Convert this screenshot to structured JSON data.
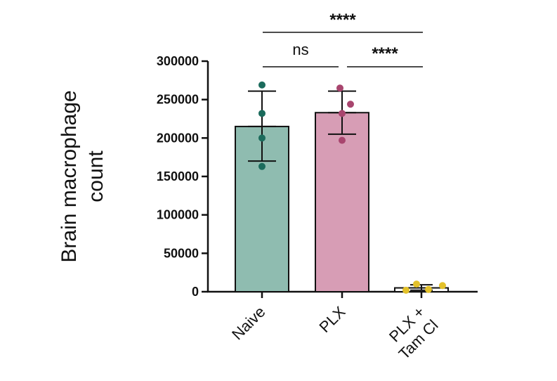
{
  "chart_data": {
    "type": "bar",
    "title": "",
    "xlabel": "",
    "ylabel_lines": [
      "Brain macrophage",
      "count"
    ],
    "ylim": [
      0,
      300000
    ],
    "yticks": [
      0,
      50000,
      100000,
      150000,
      200000,
      250000,
      300000
    ],
    "ytick_labels": [
      "0",
      "50000",
      "100000",
      "150000",
      "200000",
      "250000",
      "300000"
    ],
    "categories": [
      {
        "label_lines": [
          "Naive"
        ]
      },
      {
        "label_lines": [
          "PLX"
        ]
      },
      {
        "label_lines": [
          "PLX +",
          "Tam Cl"
        ]
      }
    ],
    "values": [
      215000,
      233000,
      5000
    ],
    "error_low": [
      170000,
      205000,
      2000
    ],
    "error_high": [
      261000,
      261000,
      9000
    ],
    "points": [
      [
        269000,
        232000,
        200000,
        163000
      ],
      [
        265000,
        244000,
        232000,
        197000
      ],
      [
        2000,
        10000,
        3000,
        8000
      ]
    ],
    "bar_colors": [
      "#8fbcb0",
      "#d79db5",
      "#ffffff"
    ],
    "point_colors": [
      "#1b6b5c",
      "#a8456e",
      "#e3c12a"
    ],
    "comparisons": [
      {
        "from": 0,
        "to": 2,
        "label": "****"
      },
      {
        "from": 0,
        "to": 1,
        "label": "ns"
      },
      {
        "from": 1,
        "to": 2,
        "label": "****"
      }
    ],
    "grid": false,
    "legend": "none"
  }
}
